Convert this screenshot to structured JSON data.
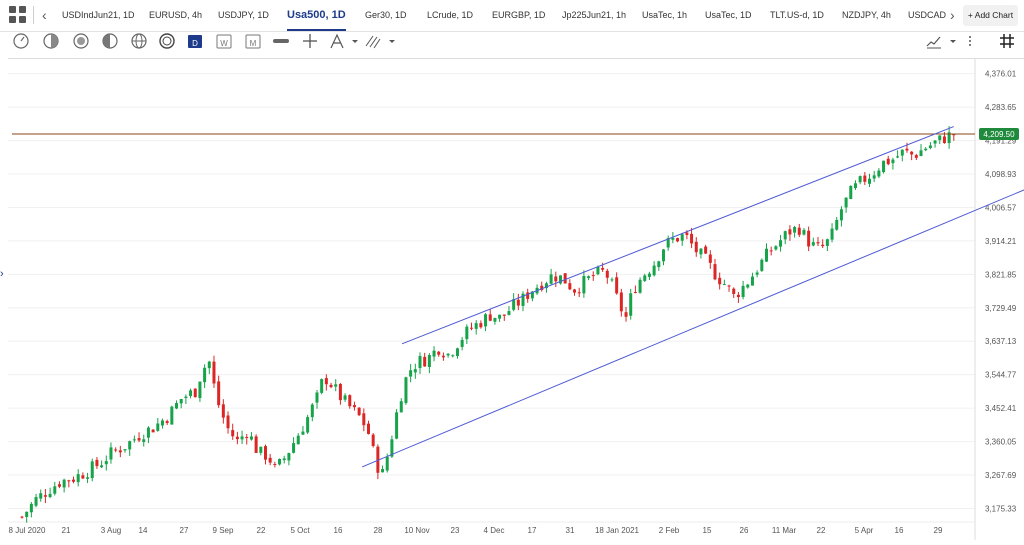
{
  "tabs": {
    "items": [
      {
        "label": "USDIndJun21, 1D"
      },
      {
        "label": "EURUSD, 4h"
      },
      {
        "label": "USDJPY, 1D"
      },
      {
        "label": "Usa500, 1D"
      },
      {
        "label": "Ger30, 1D"
      },
      {
        "label": "LCrude, 1D"
      },
      {
        "label": "EURGBP, 1D"
      },
      {
        "label": "Jp225Jun21, 1h"
      },
      {
        "label": "UsaTec, 1h"
      },
      {
        "label": "UsaTec, 1D"
      },
      {
        "label": "TLT.US-d, 1D"
      },
      {
        "label": "NZDJPY, 4h"
      },
      {
        "label": "USDCAD"
      }
    ],
    "active_index": 3,
    "add_chart_label": "+ Add Chart"
  },
  "toolbar": {
    "tools": [
      "clock-icon",
      "half-circle-icon",
      "globe-icon",
      "half-moon-icon",
      "grid-globe-icon",
      "dollar-circle-icon",
      "calendar-day-icon",
      "calendar-week-icon",
      "calendar-month-icon",
      "link-icon",
      "crosshair-icon",
      "pen-icon",
      "draw-lines-icon",
      "chart-style-icon",
      "crosshair-grid-icon"
    ]
  },
  "colors": {
    "up": "#16a34a",
    "down": "#dc2626",
    "channel": "#4f5bd5",
    "hline": "#8b4513",
    "price_badge": "#1f8a3b"
  },
  "chart_data": {
    "type": "candlestick",
    "symbol": "Usa500, 1D",
    "y_ticks": [
      "4,376.01",
      "4,283.65",
      "4,191.29",
      "4,098.93",
      "4,006.57",
      "3,914.21",
      "3,821.85",
      "3,729.49",
      "3,637.13",
      "3,544.77",
      "3,452.41",
      "3,360.05",
      "3,267.69",
      "3,175.33"
    ],
    "ylim": [
      3160,
      4400
    ],
    "x_ticks": [
      "8 Jul 2020",
      "21",
      "3 Aug",
      "14",
      "27",
      "9 Sep",
      "22",
      "5 Oct",
      "16",
      "28",
      "10 Nov",
      "23",
      "4 Dec",
      "17",
      "31",
      "18 Jan 2021",
      "2 Feb",
      "15",
      "26",
      "11 Mar",
      "22",
      "5 Apr",
      "16",
      "29"
    ],
    "last_price": "4,209.50",
    "horizontal_line": 4209.5,
    "close_path": [
      [
        0,
        3152
      ],
      [
        8,
        3200
      ],
      [
        16,
        3230
      ],
      [
        22,
        3250
      ],
      [
        30,
        3260
      ],
      [
        38,
        3280
      ],
      [
        45,
        3300
      ],
      [
        52,
        3330
      ],
      [
        60,
        3350
      ],
      [
        68,
        3380
      ],
      [
        76,
        3400
      ],
      [
        84,
        3430
      ],
      [
        92,
        3480
      ],
      [
        100,
        3500
      ],
      [
        104,
        3560
      ],
      [
        108,
        3580
      ],
      [
        112,
        3480
      ],
      [
        118,
        3400
      ],
      [
        124,
        3360
      ],
      [
        130,
        3390
      ],
      [
        136,
        3330
      ],
      [
        142,
        3320
      ],
      [
        146,
        3280
      ],
      [
        152,
        3320
      ],
      [
        158,
        3370
      ],
      [
        164,
        3420
      ],
      [
        170,
        3480
      ],
      [
        174,
        3540
      ],
      [
        178,
        3520
      ],
      [
        184,
        3480
      ],
      [
        190,
        3450
      ],
      [
        196,
        3420
      ],
      [
        200,
        3380
      ],
      [
        204,
        3300
      ],
      [
        208,
        3270
      ],
      [
        212,
        3350
      ],
      [
        216,
        3440
      ],
      [
        220,
        3520
      ],
      [
        224,
        3560
      ],
      [
        228,
        3580
      ],
      [
        234,
        3590
      ],
      [
        240,
        3620
      ],
      [
        246,
        3600
      ],
      [
        252,
        3640
      ],
      [
        258,
        3670
      ],
      [
        264,
        3690
      ],
      [
        270,
        3710
      ],
      [
        276,
        3700
      ],
      [
        282,
        3730
      ],
      [
        288,
        3750
      ],
      [
        294,
        3780
      ],
      [
        300,
        3800
      ],
      [
        306,
        3820
      ],
      [
        312,
        3810
      ],
      [
        318,
        3780
      ],
      [
        324,
        3800
      ],
      [
        330,
        3820
      ],
      [
        336,
        3830
      ],
      [
        340,
        3790
      ],
      [
        344,
        3740
      ],
      [
        348,
        3700
      ],
      [
        352,
        3780
      ],
      [
        358,
        3820
      ],
      [
        364,
        3850
      ],
      [
        370,
        3900
      ],
      [
        376,
        3920
      ],
      [
        382,
        3930
      ],
      [
        388,
        3890
      ],
      [
        394,
        3860
      ],
      [
        400,
        3820
      ],
      [
        406,
        3790
      ],
      [
        410,
        3760
      ],
      [
        414,
        3780
      ],
      [
        418,
        3800
      ],
      [
        424,
        3840
      ],
      [
        430,
        3880
      ],
      [
        436,
        3910
      ],
      [
        442,
        3940
      ],
      [
        448,
        3950
      ],
      [
        452,
        3920
      ],
      [
        456,
        3900
      ],
      [
        460,
        3890
      ],
      [
        466,
        3920
      ],
      [
        472,
        4000
      ],
      [
        478,
        4050
      ],
      [
        484,
        4080
      ],
      [
        490,
        4100
      ],
      [
        496,
        4130
      ],
      [
        502,
        4140
      ],
      [
        508,
        4160
      ],
      [
        514,
        4150
      ],
      [
        520,
        4170
      ],
      [
        526,
        4185
      ],
      [
        532,
        4200
      ],
      [
        537,
        4210
      ]
    ],
    "channel": {
      "upper": {
        "from": [
          219,
          3630
        ],
        "to": [
          537,
          4230
        ]
      },
      "lower": {
        "from": [
          196,
          3290
        ],
        "to": [
          580,
          4060
        ]
      }
    }
  }
}
